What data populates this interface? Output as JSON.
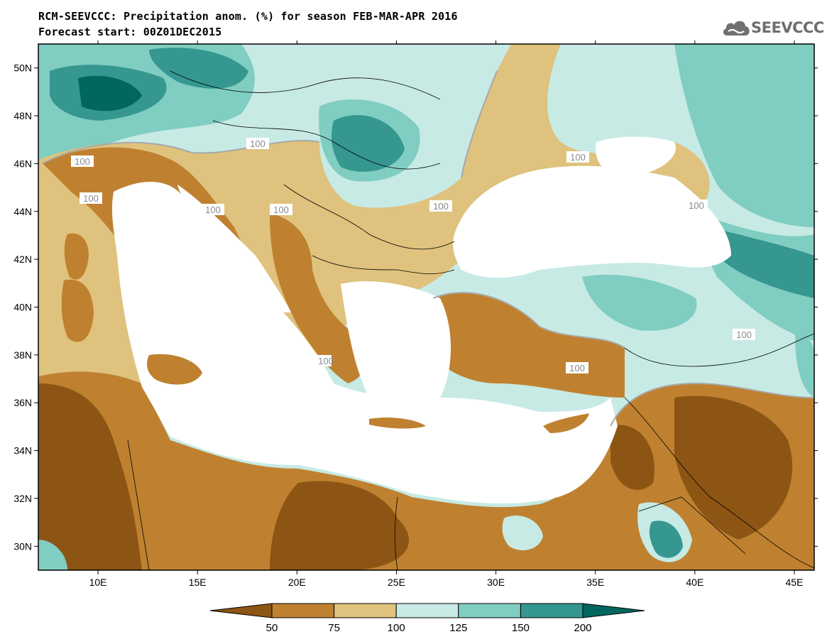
{
  "header": {
    "title_line_1": "RCM-SEEVCCC: Precipitation anom. (%) for season FEB-MAR-APR 2016",
    "title_line_2": "Forecast start: 00Z01DEC2015",
    "logo_text": "SEEVCCC",
    "logo_icon": "cloud-icon"
  },
  "map": {
    "region": "Eastern Mediterranean / South-East Europe",
    "lon_range": [
      7,
      46
    ],
    "lat_range": [
      29,
      51
    ],
    "lon_ticks": [
      "10E",
      "15E",
      "20E",
      "25E",
      "30E",
      "35E",
      "40E",
      "45E"
    ],
    "lat_ticks": [
      "50N",
      "48N",
      "46N",
      "44N",
      "42N",
      "40N",
      "38N",
      "36N",
      "34N",
      "32N",
      "30N"
    ],
    "contour_labels": [
      "100",
      "100",
      "100",
      "100",
      "100",
      "100",
      "100",
      "100",
      "100",
      "100",
      "100",
      "100"
    ]
  },
  "colorbar": {
    "levels": [
      "50",
      "75",
      "100",
      "125",
      "150",
      "200"
    ],
    "colors": [
      "#8c5514",
      "#bf8130",
      "#dfc27d",
      "#c7eae5",
      "#80cdc1",
      "#35978f",
      "#01665e"
    ]
  }
}
